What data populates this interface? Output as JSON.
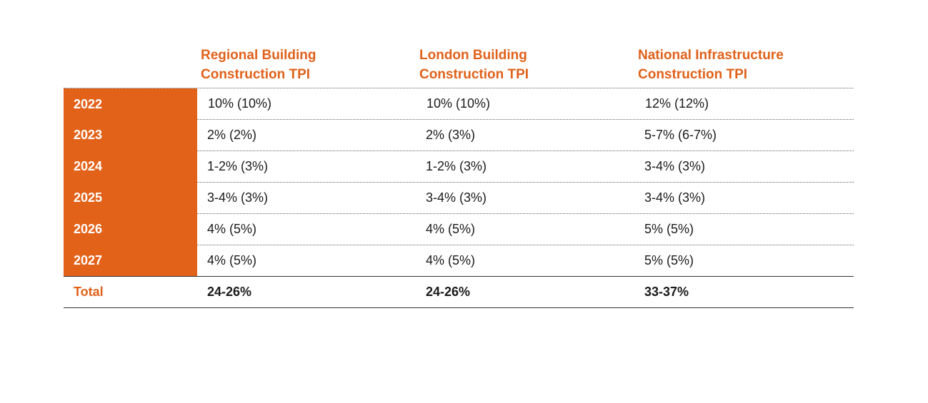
{
  "columns": [
    {
      "line1": "Regional Building",
      "line2": "Construction TPI"
    },
    {
      "line1": "London Building",
      "line2": "Construction TPI"
    },
    {
      "line1": "National Infrastructure",
      "line2": "Construction TPI"
    }
  ],
  "rows": [
    {
      "year": "2022",
      "values": [
        "10% (10%)",
        "10% (10%)",
        "12% (12%)"
      ]
    },
    {
      "year": "2023",
      "values": [
        "2% (2%)",
        "2% (3%)",
        "5-7% (6-7%)"
      ]
    },
    {
      "year": "2024",
      "values": [
        "1-2% (3%)",
        "1-2% (3%)",
        "3-4% (3%)"
      ]
    },
    {
      "year": "2025",
      "values": [
        "3-4% (3%)",
        "3-4% (3%)",
        "3-4% (3%)"
      ]
    },
    {
      "year": "2026",
      "values": [
        "4% (5%)",
        "4% (5%)",
        "5% (5%)"
      ]
    },
    {
      "year": "2027",
      "values": [
        "4% (5%)",
        "4% (5%)",
        "5% (5%)"
      ]
    }
  ],
  "total": {
    "label": "Total",
    "values": [
      "24-26%",
      "24-26%",
      "33-37%"
    ]
  },
  "colors": {
    "accent": "#e3621a",
    "text": "#1a1a1a"
  }
}
